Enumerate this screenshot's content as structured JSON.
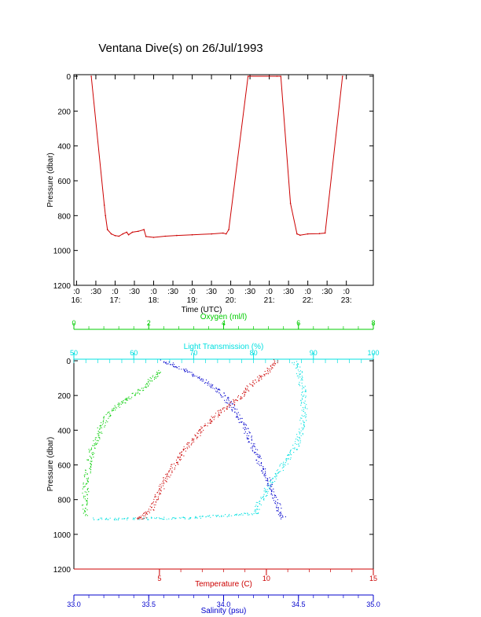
{
  "title": "Ventana Dive(s) on 26/Jul/1993",
  "chart_data": [
    {
      "type": "line",
      "xlabel": "Time (UTC)",
      "ylabel": "Pressure (dbar)",
      "x_ticks": [
        {
          "t": 16.0,
          "top": ":0",
          "bottom": "16:"
        },
        {
          "t": 16.5,
          "top": ":30",
          "bottom": ""
        },
        {
          "t": 17.0,
          "top": ":0",
          "bottom": "17:"
        },
        {
          "t": 17.5,
          "top": ":30",
          "bottom": ""
        },
        {
          "t": 18.0,
          "top": ":0",
          "bottom": "18:"
        },
        {
          "t": 18.5,
          "top": ":30",
          "bottom": ""
        },
        {
          "t": 19.0,
          "top": ":0",
          "bottom": "19:"
        },
        {
          "t": 19.5,
          "top": ":30",
          "bottom": ""
        },
        {
          "t": 20.0,
          "top": ":0",
          "bottom": "20:"
        },
        {
          "t": 20.5,
          "top": ":30",
          "bottom": ""
        },
        {
          "t": 21.0,
          "top": ":0",
          "bottom": "21:"
        },
        {
          "t": 21.5,
          "top": ":30",
          "bottom": ""
        },
        {
          "t": 22.0,
          "top": ":0",
          "bottom": "22:"
        },
        {
          "t": 22.5,
          "top": ":30",
          "bottom": ""
        },
        {
          "t": 23.0,
          "top": ":0",
          "bottom": "23:"
        }
      ],
      "y_ticks": [
        "0",
        "200",
        "400",
        "600",
        "800",
        "1000",
        "1200"
      ],
      "xlim": [
        15.93,
        23.7
      ],
      "ylim": [
        1200,
        0
      ],
      "series": [
        {
          "color": "#cc0000",
          "values": [
            [
              16.38,
              0
            ],
            [
              16.72,
              740
            ],
            [
              16.75,
              800
            ],
            [
              16.8,
              880
            ],
            [
              16.9,
              905
            ],
            [
              17.0,
              915
            ],
            [
              17.1,
              918
            ],
            [
              17.2,
              905
            ],
            [
              17.3,
              895
            ],
            [
              17.35,
              910
            ],
            [
              17.45,
              895
            ],
            [
              17.6,
              890
            ],
            [
              17.75,
              880
            ],
            [
              17.8,
              920
            ],
            [
              18.0,
              925
            ],
            [
              18.3,
              918
            ],
            [
              18.6,
              914
            ],
            [
              19.0,
              910
            ],
            [
              19.5,
              905
            ],
            [
              19.8,
              900
            ],
            [
              19.88,
              905
            ],
            [
              19.95,
              880
            ],
            [
              20.45,
              0
            ],
            [
              21.2,
              0
            ],
            [
              21.3,
              0
            ],
            [
              21.55,
              730
            ],
            [
              21.72,
              905
            ],
            [
              21.8,
              912
            ],
            [
              22.0,
              905
            ],
            [
              22.3,
              903
            ],
            [
              22.45,
              900
            ],
            [
              22.9,
              0
            ]
          ]
        }
      ]
    },
    {
      "type": "scatter",
      "ylabel": "Pressure (dbar)",
      "ylim": [
        1200,
        0
      ],
      "y_ticks": [
        "0",
        "200",
        "400",
        "600",
        "800",
        "1000",
        "1200"
      ],
      "series": [
        {
          "name": "Oxygen (ml/l)",
          "color": "#00cc00",
          "xlim": [
            0,
            8
          ],
          "x_ticks": [
            "0",
            "2",
            "4",
            "6",
            "8"
          ],
          "values": [
            [
              2.3,
              60
            ],
            [
              2.1,
              100
            ],
            [
              1.9,
              150
            ],
            [
              1.6,
              200
            ],
            [
              1.2,
              250
            ],
            [
              0.95,
              300
            ],
            [
              0.7,
              400
            ],
            [
              0.5,
              500
            ],
            [
              0.4,
              600
            ],
            [
              0.33,
              700
            ],
            [
              0.3,
              800
            ],
            [
              0.29,
              900
            ]
          ]
        },
        {
          "name": "Light Transmission (%)",
          "color": "#00e0e0",
          "xlim": [
            50,
            100
          ],
          "x_ticks": [
            "50",
            "60",
            "70",
            "80",
            "90",
            "100"
          ],
          "values": [
            [
              87,
              5
            ],
            [
              88,
              100
            ],
            [
              88.3,
              200
            ],
            [
              88.5,
              300
            ],
            [
              88,
              400
            ],
            [
              87,
              500
            ],
            [
              85,
              600
            ],
            [
              83,
              700
            ],
            [
              81,
              820
            ],
            [
              80.5,
              880
            ],
            [
              70,
              905
            ],
            [
              60,
              910
            ],
            [
              53,
              912
            ]
          ]
        },
        {
          "name": "Temperature (C)",
          "color": "#cc0000",
          "xlim": [
            1.0,
            15.0
          ],
          "x_ticks": [
            "5",
            "10",
            "15"
          ],
          "values": [
            [
              10.5,
              0
            ],
            [
              9.9,
              80
            ],
            [
              9.2,
              150
            ],
            [
              8.8,
              210
            ],
            [
              7.9,
              290
            ],
            [
              7.1,
              380
            ],
            [
              6.4,
              480
            ],
            [
              5.8,
              580
            ],
            [
              5.3,
              680
            ],
            [
              4.9,
              780
            ],
            [
              4.6,
              860
            ],
            [
              4.2,
              905
            ],
            [
              3.9,
              910
            ]
          ]
        },
        {
          "name": "Salinity (psu)",
          "color": "#0000cc",
          "xlim": [
            33.0,
            35.0
          ],
          "x_ticks": [
            "33.0",
            "33.5",
            "34.0",
            "34.5",
            "35.0"
          ],
          "values": [
            [
              33.6,
              0
            ],
            [
              33.75,
              60
            ],
            [
              33.9,
              130
            ],
            [
              34.0,
              200
            ],
            [
              34.05,
              250
            ],
            [
              34.1,
              320
            ],
            [
              34.15,
              400
            ],
            [
              34.2,
              500
            ],
            [
              34.25,
              600
            ],
            [
              34.3,
              700
            ],
            [
              34.35,
              800
            ],
            [
              34.38,
              880
            ],
            [
              34.4,
              910
            ]
          ]
        }
      ]
    }
  ]
}
